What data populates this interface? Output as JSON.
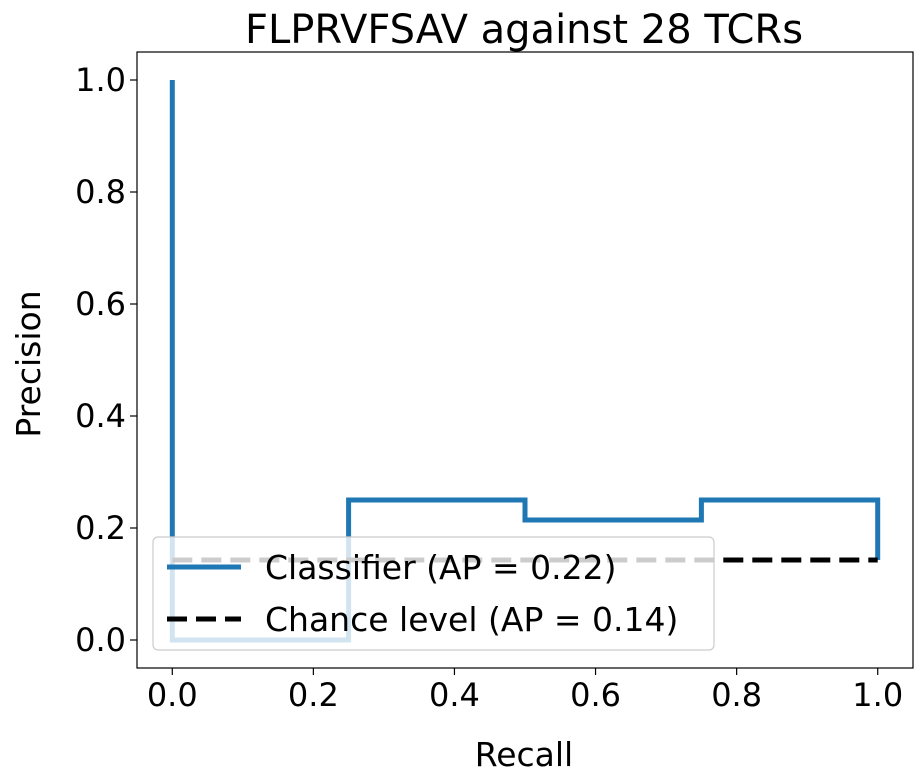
{
  "chart_data": {
    "type": "line",
    "title": "FLPRVFSAV against 28 TCRs",
    "xlabel": "Recall",
    "ylabel": "Precision",
    "xlim": [
      -0.05,
      1.05
    ],
    "ylim": [
      -0.05,
      1.05
    ],
    "xticks": [
      0.0,
      0.2,
      0.4,
      0.6,
      0.8,
      1.0
    ],
    "xtick_labels": [
      "0.0",
      "0.2",
      "0.4",
      "0.6",
      "0.8",
      "1.0"
    ],
    "yticks": [
      0.0,
      0.2,
      0.4,
      0.6,
      0.8,
      1.0
    ],
    "ytick_labels": [
      "0.0",
      "0.2",
      "0.4",
      "0.6",
      "0.8",
      "1.0"
    ],
    "grid": false,
    "legend_position": "lower-left",
    "series": [
      {
        "name": "Classifier (AP = 0.22)",
        "style": "steps-post",
        "color": "#1f77b4",
        "x": [
          0.0,
          0.0,
          0.25,
          0.25,
          0.5,
          0.5,
          0.75,
          0.75,
          1.0,
          1.0
        ],
        "y": [
          1.0,
          0.0,
          0.0,
          0.25,
          0.25,
          0.2143,
          0.2143,
          0.25,
          0.25,
          0.1429
        ]
      },
      {
        "name": "Chance level (AP = 0.14)",
        "style": "dashed",
        "color": "#000000",
        "x": [
          0.0,
          1.0
        ],
        "y": [
          0.1429,
          0.1429
        ]
      }
    ]
  }
}
